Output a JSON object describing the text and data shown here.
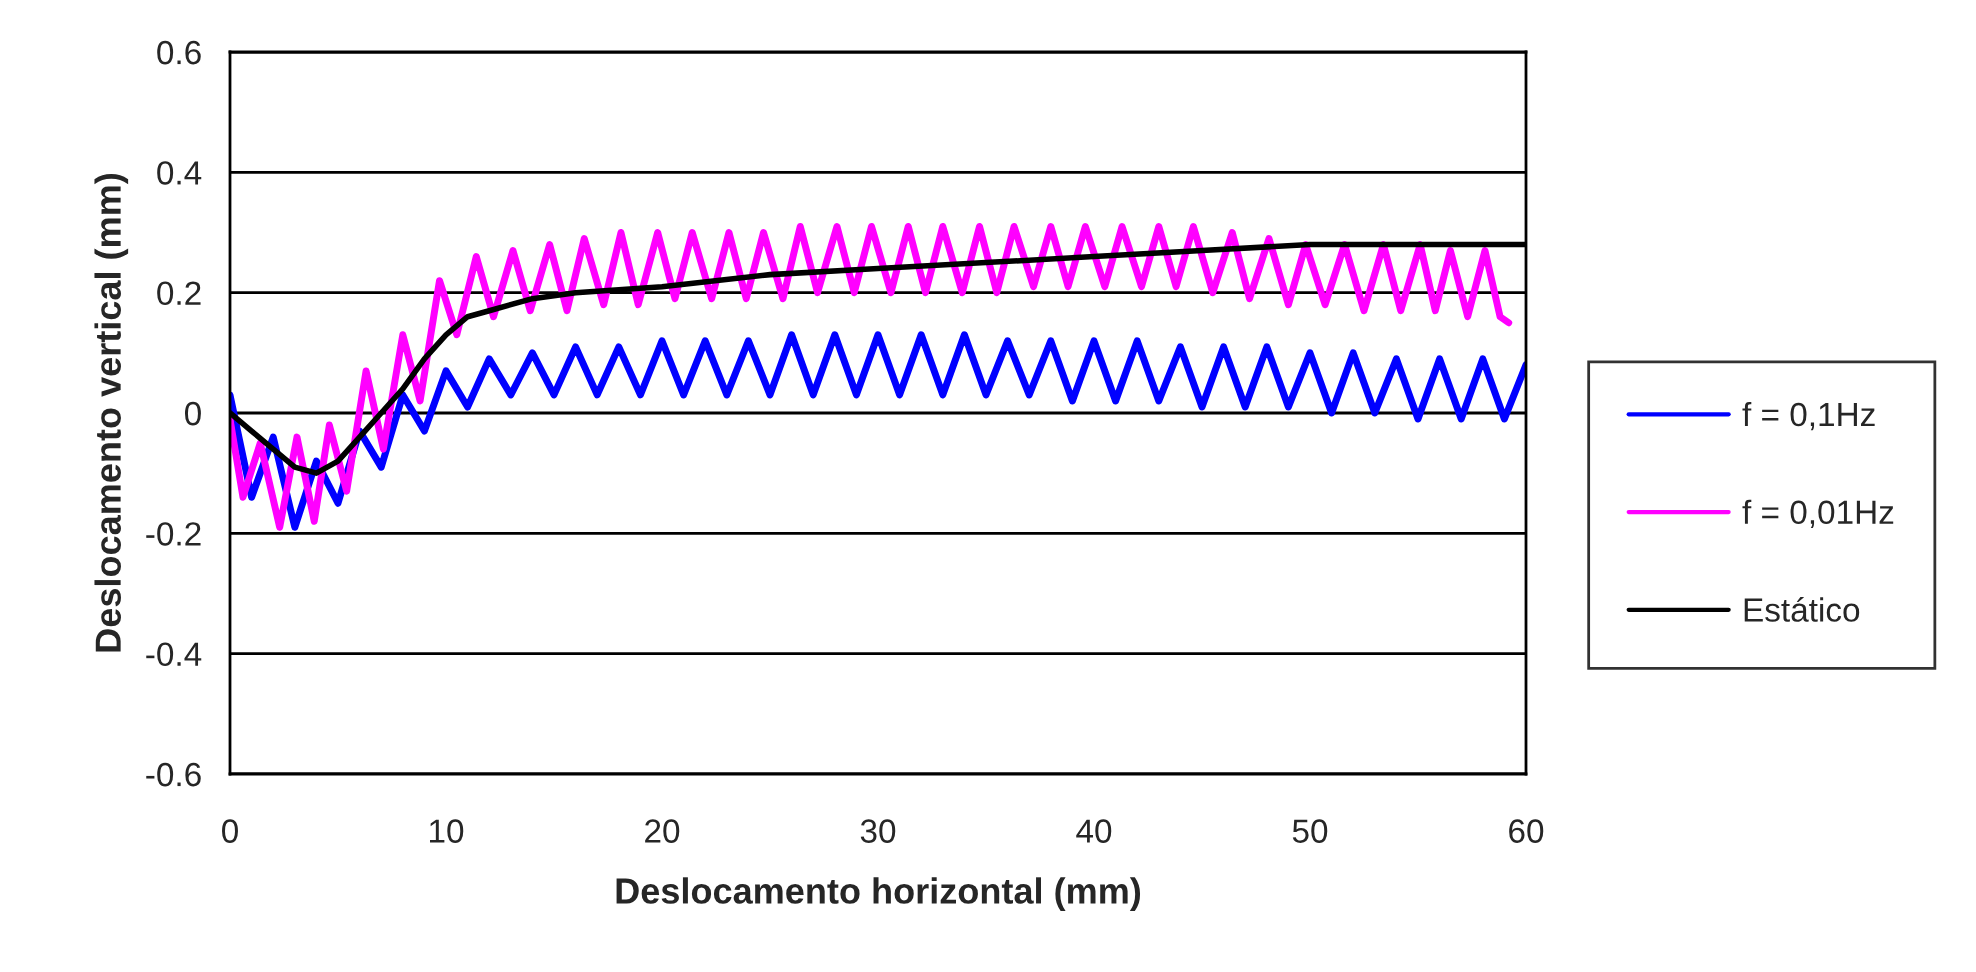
{
  "chart_data": {
    "type": "line",
    "xlabel": "Deslocamento horizontal (mm)",
    "ylabel": "Deslocamento vertical (mm)",
    "xlim": [
      0,
      60
    ],
    "xticks": [
      0,
      10,
      20,
      30,
      40,
      50,
      60
    ],
    "ylim": [
      -0.6,
      0.6
    ],
    "yticks": [
      -0.6,
      -0.4,
      -0.2,
      0,
      0.2,
      0.4,
      0.6
    ],
    "grid": "y",
    "legend": "right",
    "marker": "none",
    "line_style": "solid",
    "series": [
      {
        "name": "f = 0,1Hz",
        "color": "#0000ff",
        "x": [
          0,
          1,
          2,
          3,
          4,
          5,
          6,
          7,
          8,
          9,
          10,
          11,
          12,
          13,
          14,
          15,
          16,
          17,
          18,
          19,
          20,
          21,
          22,
          23,
          24,
          25,
          26,
          27,
          28,
          29,
          30,
          31,
          32,
          33,
          34,
          35,
          36,
          37,
          38,
          39,
          40,
          41,
          42,
          43,
          44,
          45,
          46,
          47,
          48,
          49,
          50,
          51,
          52,
          53,
          54,
          55,
          56,
          57,
          58,
          59,
          60
        ],
        "values": [
          0.03,
          -0.14,
          -0.04,
          -0.19,
          -0.08,
          -0.15,
          -0.03,
          -0.09,
          0.03,
          -0.03,
          0.07,
          0.01,
          0.09,
          0.03,
          0.1,
          0.03,
          0.11,
          0.03,
          0.11,
          0.03,
          0.12,
          0.03,
          0.12,
          0.03,
          0.12,
          0.03,
          0.13,
          0.03,
          0.13,
          0.03,
          0.13,
          0.03,
          0.13,
          0.03,
          0.13,
          0.03,
          0.12,
          0.03,
          0.12,
          0.02,
          0.12,
          0.02,
          0.12,
          0.02,
          0.11,
          0.01,
          0.11,
          0.01,
          0.11,
          0.01,
          0.1,
          0.0,
          0.1,
          0.0,
          0.09,
          -0.01,
          0.09,
          -0.01,
          0.09,
          -0.01,
          0.08
        ]
      },
      {
        "name": "f = 0,01Hz",
        "color": "#ff00ff",
        "x": [
          0,
          0.6,
          1.4,
          2.3,
          3.1,
          3.9,
          4.6,
          5.4,
          6.3,
          7.1,
          8.0,
          8.8,
          9.7,
          10.5,
          11.4,
          12.2,
          13.1,
          13.9,
          14.8,
          15.6,
          16.4,
          17.3,
          18.1,
          18.9,
          19.8,
          20.6,
          21.4,
          22.3,
          23.1,
          23.9,
          24.7,
          25.6,
          26.4,
          27.2,
          28.1,
          28.9,
          29.7,
          30.6,
          31.4,
          32.2,
          33.0,
          33.9,
          34.7,
          35.5,
          36.3,
          37.2,
          38.0,
          38.8,
          39.6,
          40.5,
          41.3,
          42.2,
          43.0,
          43.8,
          44.6,
          45.5,
          46.4,
          47.2,
          48.1,
          49.0,
          49.8,
          50.7,
          51.6,
          52.5,
          53.4,
          54.2,
          55.1,
          55.8,
          56.5,
          57.3,
          58.1,
          58.8,
          59.2
        ],
        "values": [
          -0.01,
          -0.14,
          -0.05,
          -0.19,
          -0.04,
          -0.18,
          -0.02,
          -0.13,
          0.07,
          -0.06,
          0.13,
          0.02,
          0.22,
          0.13,
          0.26,
          0.16,
          0.27,
          0.17,
          0.28,
          0.17,
          0.29,
          0.18,
          0.3,
          0.18,
          0.3,
          0.19,
          0.3,
          0.19,
          0.3,
          0.19,
          0.3,
          0.19,
          0.31,
          0.2,
          0.31,
          0.2,
          0.31,
          0.2,
          0.31,
          0.2,
          0.31,
          0.2,
          0.31,
          0.2,
          0.31,
          0.21,
          0.31,
          0.21,
          0.31,
          0.21,
          0.31,
          0.21,
          0.31,
          0.21,
          0.31,
          0.2,
          0.3,
          0.19,
          0.29,
          0.18,
          0.28,
          0.18,
          0.28,
          0.17,
          0.28,
          0.17,
          0.28,
          0.17,
          0.27,
          0.16,
          0.27,
          0.16,
          0.15
        ]
      },
      {
        "name": "Estático",
        "color": "#000000",
        "x": [
          0,
          1,
          2,
          3,
          4,
          5,
          6,
          7,
          8,
          9,
          10,
          11,
          12,
          14,
          16,
          20,
          25,
          30,
          35,
          40,
          45,
          50,
          55,
          60
        ],
        "values": [
          0,
          -0.03,
          -0.06,
          -0.09,
          -0.1,
          -0.08,
          -0.04,
          0.0,
          0.04,
          0.09,
          0.13,
          0.16,
          0.17,
          0.19,
          0.2,
          0.21,
          0.23,
          0.24,
          0.25,
          0.26,
          0.27,
          0.28,
          0.28,
          0.28
        ]
      }
    ]
  }
}
